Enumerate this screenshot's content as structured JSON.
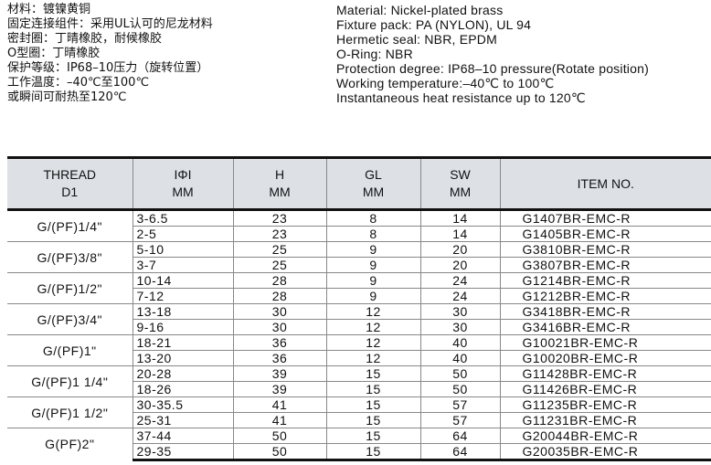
{
  "specs_cn": [
    "材料：镀镍黄铜",
    "固定连接组件：采用UL认可的尼龙材料",
    "密封圈：丁晴橡胶，耐候橡胶",
    "O型圈：丁晴橡胶",
    "保护等级：IP68–10压力（旋转位置）",
    "工作温度：–40℃至100℃",
    "或瞬间可耐热至120℃"
  ],
  "specs_en": [
    "Material: Nickel-plated brass",
    "Fixture pack: PA (NYLON), UL 94",
    "Hermetic seal: NBR, EPDM",
    "O-Ring: NBR",
    "Protection degree: IP68–10 pressure(Rotate position)",
    "Working temperature:–40℃ to 100℃",
    "Instantaneous heat resistance up to 120℃"
  ],
  "table": {
    "headers": [
      [
        "THREAD",
        "D1"
      ],
      [
        "IΦI",
        "MM"
      ],
      [
        "H",
        "MM"
      ],
      [
        "GL",
        "MM"
      ],
      [
        "SW",
        "MM"
      ],
      [
        "ITEM NO.",
        ""
      ]
    ],
    "groups": [
      {
        "thread": "G/(PF)1/4\"",
        "rows": [
          [
            "3-6.5",
            "23",
            "8",
            "14",
            "G1407BR-EMC-R"
          ],
          [
            "2-5",
            "23",
            "8",
            "14",
            "G1405BR-EMC-R"
          ]
        ]
      },
      {
        "thread": "G/(PF)3/8\"",
        "rows": [
          [
            "5-10",
            "25",
            "9",
            "20",
            "G3810BR-EMC-R"
          ],
          [
            "3-7",
            "25",
            "9",
            "20",
            "G3807BR-EMC-R"
          ]
        ]
      },
      {
        "thread": "G/(PF)1/2\"",
        "rows": [
          [
            "10-14",
            "28",
            "9",
            "24",
            "G1214BR-EMC-R"
          ],
          [
            "7-12",
            "28",
            "9",
            "24",
            "G1212BR-EMC-R"
          ]
        ]
      },
      {
        "thread": "G/(PF)3/4\"",
        "rows": [
          [
            "13-18",
            "30",
            "12",
            "30",
            "G3418BR-EMC-R"
          ],
          [
            "9-16",
            "30",
            "12",
            "30",
            "G3416BR-EMC-R"
          ]
        ]
      },
      {
        "thread": "G/(PF)1\"",
        "rows": [
          [
            "18-21",
            "36",
            "12",
            "40",
            "G10021BR-EMC-R"
          ],
          [
            "13-20",
            "36",
            "12",
            "40",
            "G10020BR-EMC-R"
          ]
        ]
      },
      {
        "thread": "G/(PF)1 1/4\"",
        "rows": [
          [
            "20-28",
            "39",
            "15",
            "50",
            "G11428BR-EMC-R"
          ],
          [
            "18-26",
            "39",
            "15",
            "50",
            "G11426BR-EMC-R"
          ]
        ]
      },
      {
        "thread": "G/(PF)1 1/2\"",
        "rows": [
          [
            "30-35.5",
            "41",
            "15",
            "57",
            "G11235BR-EMC-R"
          ],
          [
            "25-31",
            "41",
            "15",
            "57",
            "G11231BR-EMC-R"
          ]
        ]
      },
      {
        "thread": "G(PF)2\"",
        "rows": [
          [
            "37-44",
            "50",
            "15",
            "64",
            "G20044BR-EMC-R"
          ],
          [
            "29-35",
            "50",
            "15",
            "64",
            "G20035BR-EMC-R"
          ]
        ]
      }
    ]
  }
}
